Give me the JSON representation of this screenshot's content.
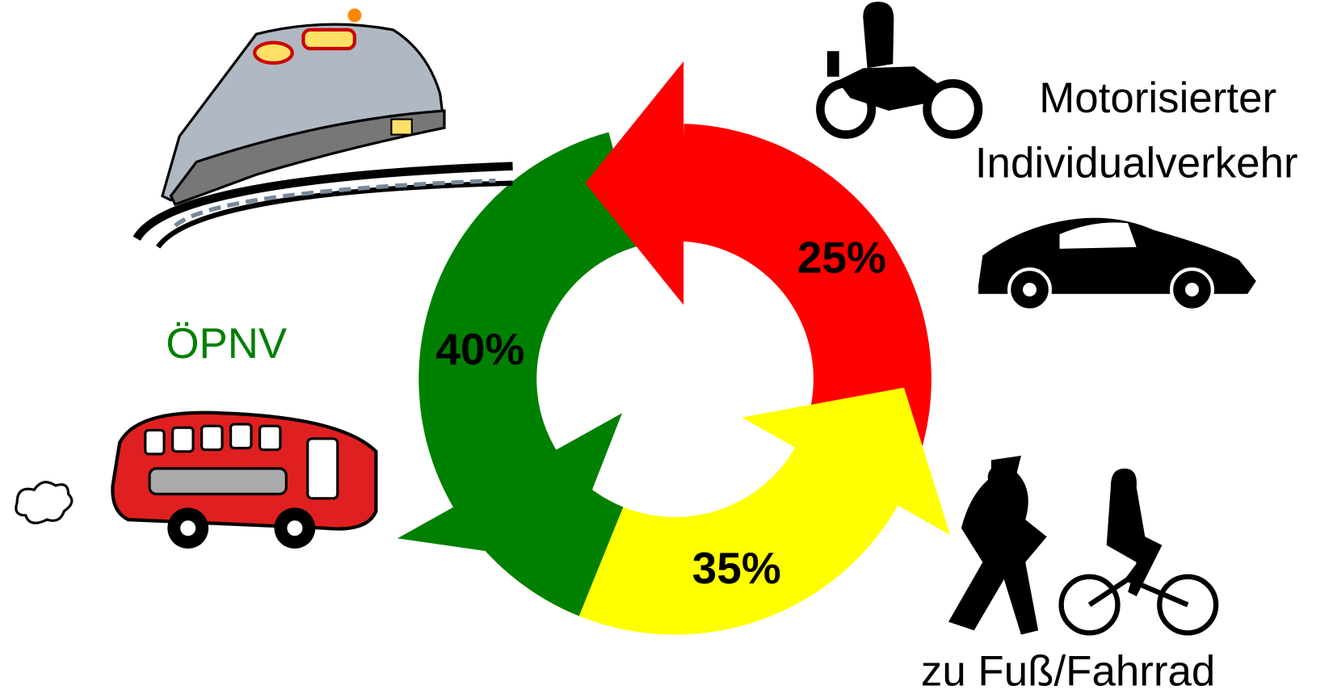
{
  "segments": [
    {
      "label": [
        "ÖPNV"
      ],
      "share": "40%"
    },
    {
      "label": [
        "Motorisierter",
        "Individualverkehr"
      ],
      "share": "25%"
    },
    {
      "label": [
        "zu Fuß/Fahrrad"
      ],
      "share": "35%"
    }
  ]
}
